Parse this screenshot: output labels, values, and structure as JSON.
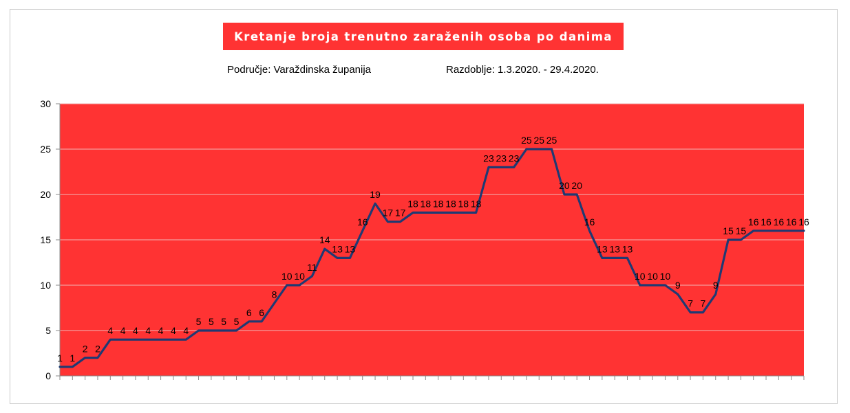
{
  "title": "Kretanje broja trenutno zaraženih osoba po danima",
  "subtitle_area": "Područje: Varaždinska županija",
  "subtitle_period": "Razdoblje: 1.3.2020. - 29.4.2020.",
  "colors": {
    "plot_background": "#ff3333",
    "line": "#1f3a73",
    "title_background": "#ff3333",
    "title_text": "#ffffff"
  },
  "chart_data": {
    "type": "line",
    "title": "Kretanje broja trenutno zaraženih osoba po danima",
    "xlabel": "",
    "ylabel": "",
    "ylim": [
      0,
      30
    ],
    "yticks": [
      0,
      5,
      10,
      15,
      20,
      25,
      30
    ],
    "grid": true,
    "legend": "none",
    "data_labels": true,
    "series": [
      {
        "values": [
          1,
          1,
          2,
          2,
          4,
          4,
          4,
          4,
          4,
          4,
          4,
          5,
          5,
          5,
          5,
          6,
          6,
          8,
          10,
          10,
          11,
          14,
          13,
          13,
          16,
          19,
          17,
          17,
          18,
          18,
          18,
          18,
          18,
          18,
          23,
          23,
          23,
          25,
          25,
          25,
          20,
          20,
          16,
          13,
          13,
          13,
          10,
          10,
          10,
          9,
          7,
          7,
          9,
          15,
          15,
          16,
          16,
          16,
          16,
          16
        ]
      }
    ]
  }
}
